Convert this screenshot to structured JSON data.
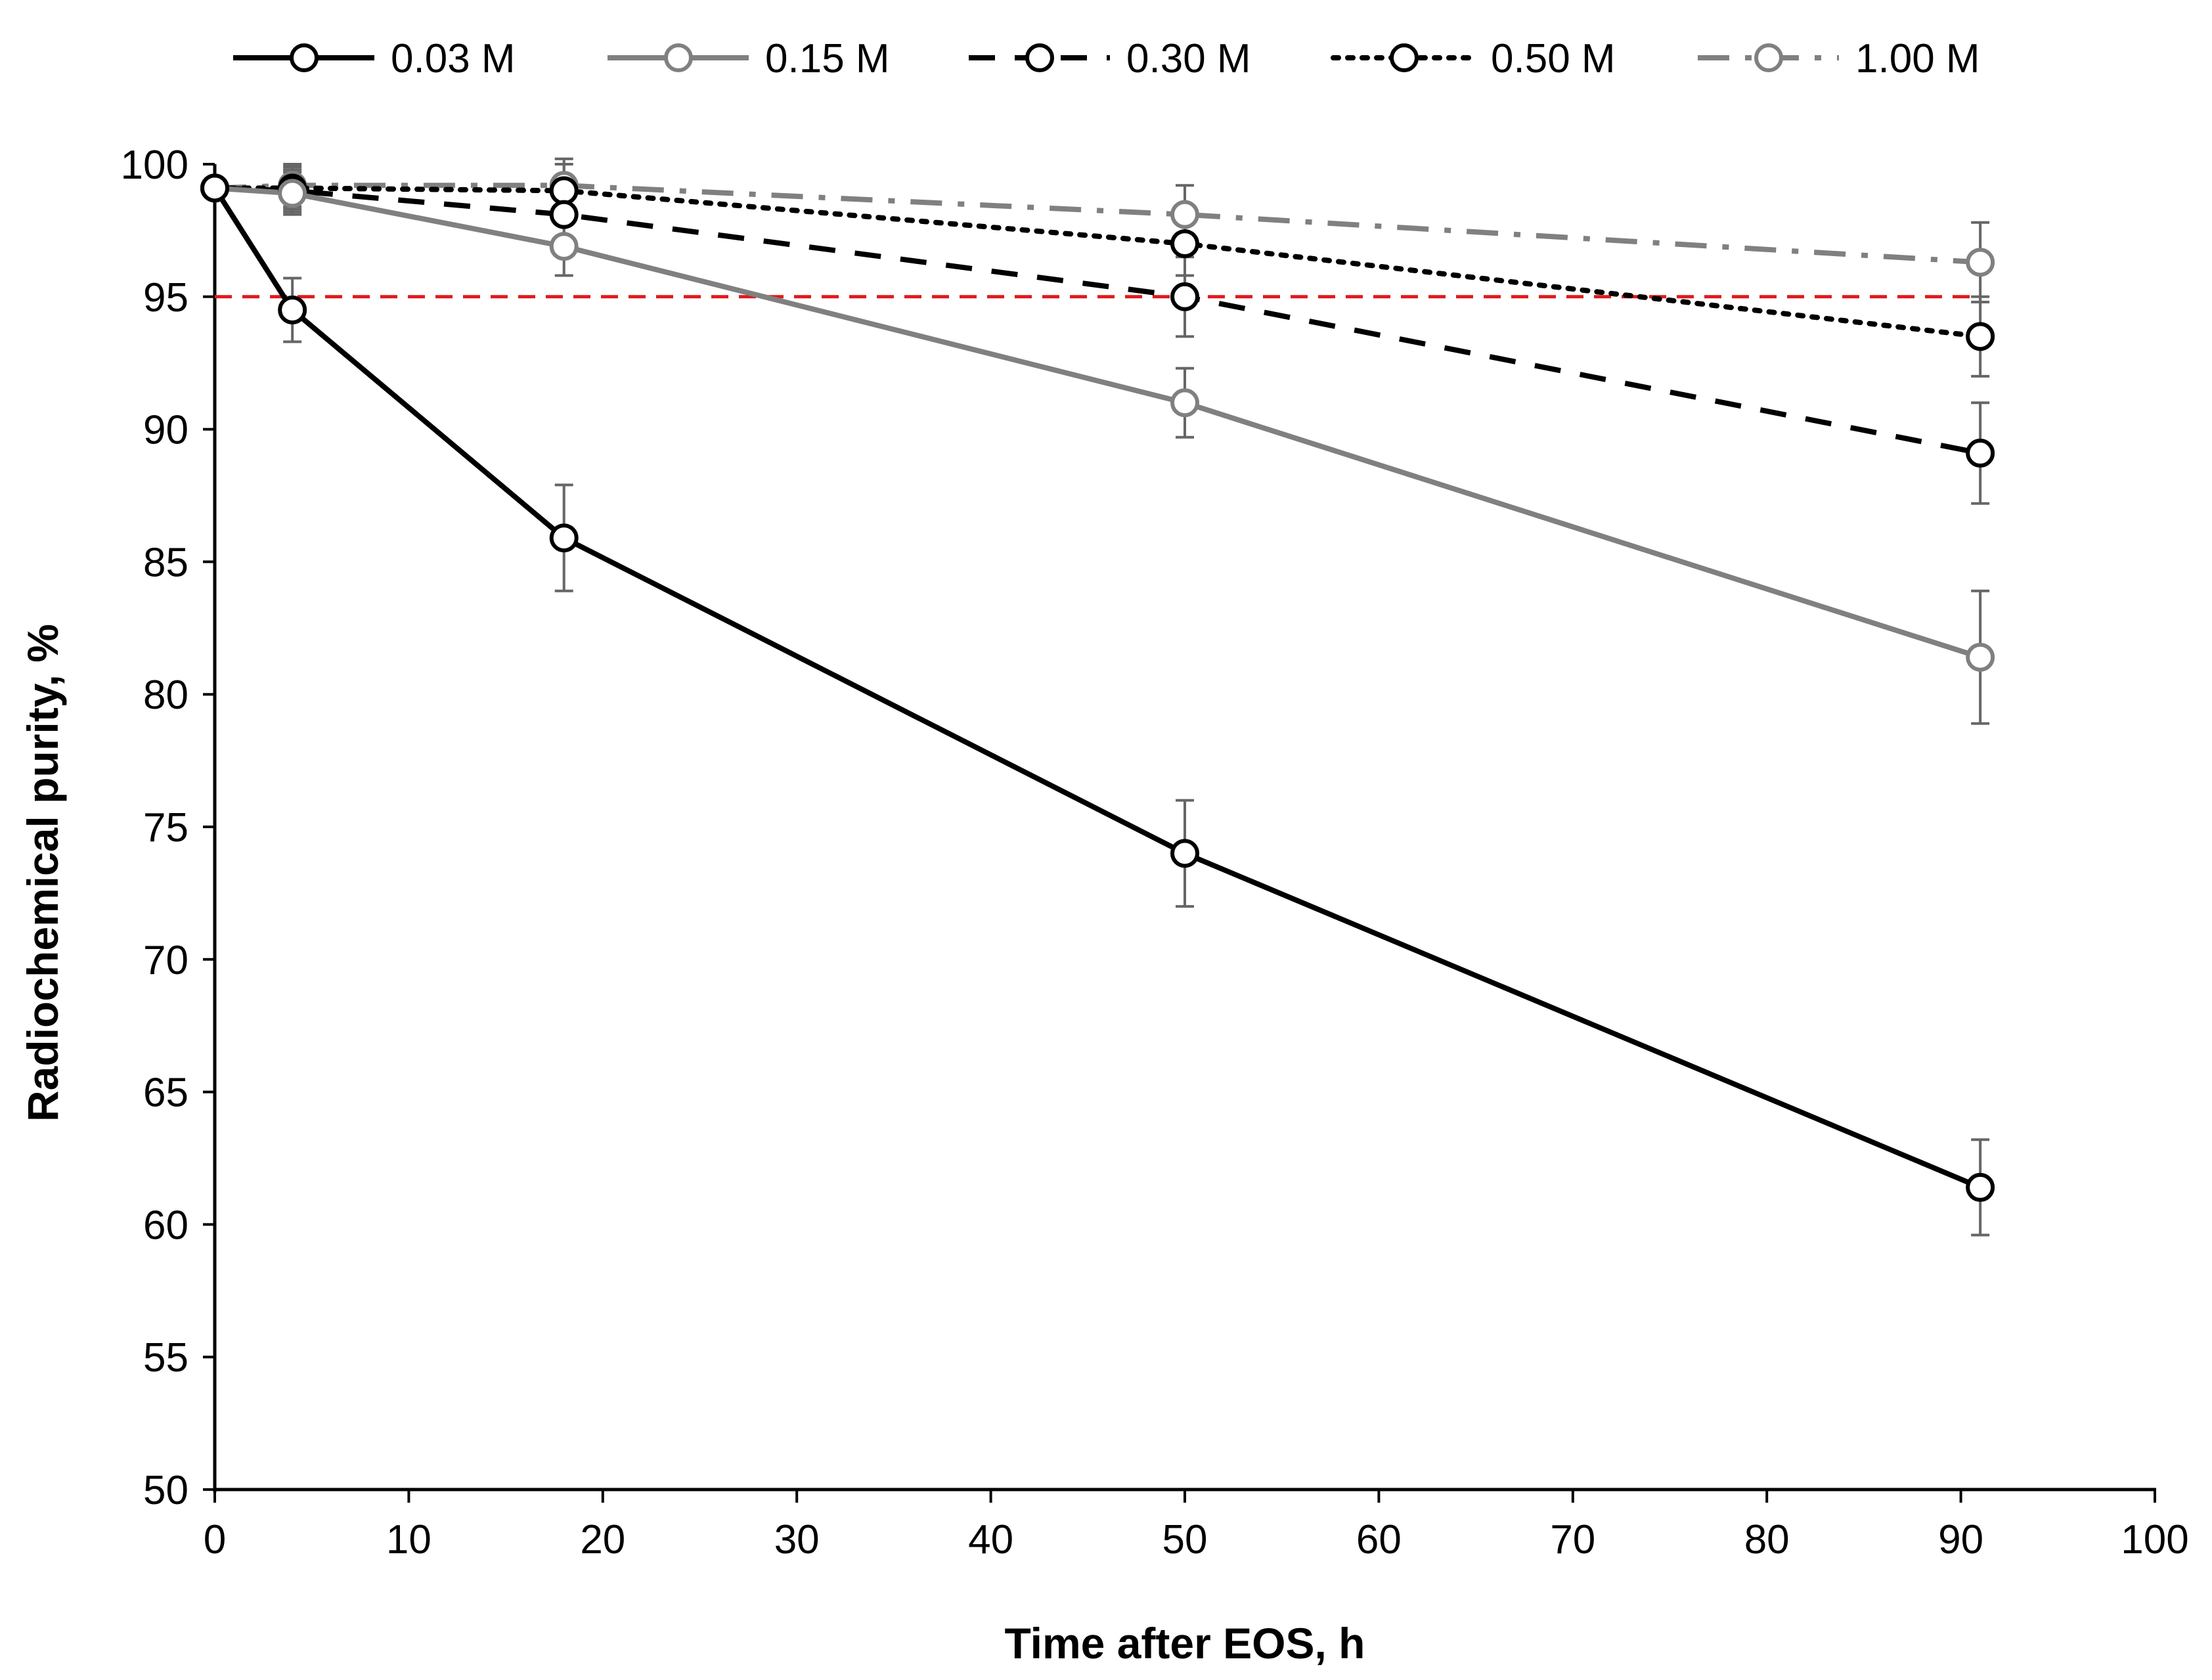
{
  "chart_data": {
    "type": "line",
    "xlabel": "Time after EOS, h",
    "ylabel": "Radiochemical purity, %",
    "xlim": [
      0,
      100
    ],
    "ylim": [
      50,
      100
    ],
    "x_ticks": [
      "0",
      "10",
      "20",
      "30",
      "40",
      "50",
      "60",
      "70",
      "80",
      "90",
      "100"
    ],
    "y_ticks": [
      "50",
      "55",
      "60",
      "65",
      "70",
      "75",
      "80",
      "85",
      "90",
      "95",
      "100"
    ],
    "legend_position": "top",
    "reference_line": {
      "y": 95,
      "color": "#e0191b",
      "style": "dashed"
    },
    "series": [
      {
        "name": "0.03 M",
        "color": "#000000",
        "dash": "solid",
        "marker_color": "#000000",
        "points": [
          {
            "x": 0,
            "y": 99.1
          },
          {
            "x": 4,
            "y": 94.5,
            "err": 1.2
          },
          {
            "x": 18,
            "y": 85.9,
            "err": 2.0
          },
          {
            "x": 50,
            "y": 74.0,
            "err": 2.0
          },
          {
            "x": 91,
            "y": 61.4,
            "err": 1.8
          }
        ]
      },
      {
        "name": "0.15 M",
        "color": "#808080",
        "dash": "solid",
        "marker_color": "#808080",
        "points": [
          {
            "x": 0,
            "y": 99.1
          },
          {
            "x": 4,
            "y": 98.9,
            "err": 0.8
          },
          {
            "x": 18,
            "y": 96.9,
            "err": 1.1
          },
          {
            "x": 50,
            "y": 91.0,
            "err": 1.3
          },
          {
            "x": 91,
            "y": 81.4,
            "err": 2.5
          }
        ]
      },
      {
        "name": "0.30 M",
        "color": "#000000",
        "dash": "dash",
        "marker_color": "#000000",
        "points": [
          {
            "x": 0,
            "y": 99.1
          },
          {
            "x": 4,
            "y": 99.0,
            "err": 0.8
          },
          {
            "x": 18,
            "y": 98.1,
            "err": 1.2
          },
          {
            "x": 50,
            "y": 95.0,
            "err": 1.5
          },
          {
            "x": 91,
            "y": 89.1,
            "err": 1.9
          }
        ]
      },
      {
        "name": "0.50 M",
        "color": "#000000",
        "dash": "dot",
        "marker_color": "#000000",
        "points": [
          {
            "x": 0,
            "y": 99.1
          },
          {
            "x": 4,
            "y": 99.1,
            "err": 0.8
          },
          {
            "x": 18,
            "y": 99.0,
            "err": 1.0
          },
          {
            "x": 50,
            "y": 97.0,
            "err": 1.2
          },
          {
            "x": 91,
            "y": 93.5,
            "err": 1.5
          }
        ]
      },
      {
        "name": "1.00 M",
        "color": "#808080",
        "dash": "dashdot",
        "marker_color": "#808080",
        "points": [
          {
            "x": 0,
            "y": 99.1
          },
          {
            "x": 4,
            "y": 99.2,
            "err": 0.8
          },
          {
            "x": 18,
            "y": 99.2,
            "err": 1.0
          },
          {
            "x": 50,
            "y": 98.1,
            "err": 1.1
          },
          {
            "x": 91,
            "y": 96.3,
            "err": 1.5
          }
        ]
      }
    ]
  }
}
